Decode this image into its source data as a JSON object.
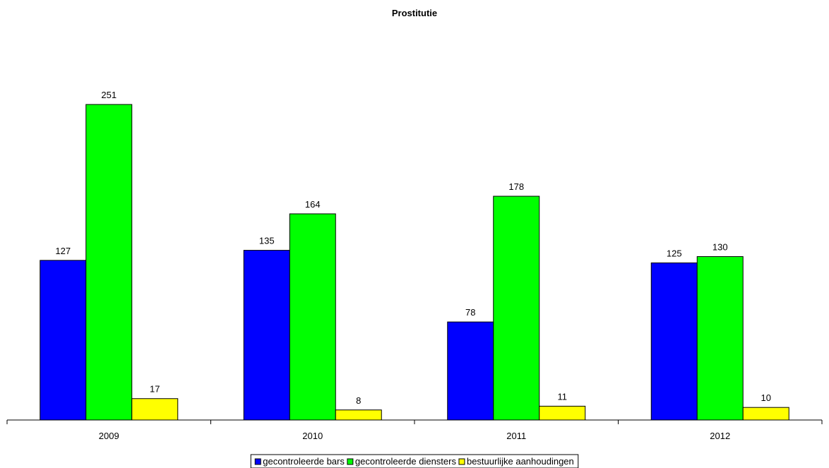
{
  "chart_data": {
    "type": "bar",
    "title": "Prostitutie",
    "xlabel": "",
    "ylabel": "",
    "categories": [
      "2009",
      "2010",
      "2011",
      "2012"
    ],
    "series": [
      {
        "name": "gecontroleerde bars",
        "values": [
          127,
          135,
          78,
          125
        ],
        "color": "#0000ff"
      },
      {
        "name": "gecontroleerde diensters",
        "values": [
          251,
          164,
          178,
          130
        ],
        "color": "#00ff00"
      },
      {
        "name": "bestuurlijke aanhoudingen",
        "values": [
          17,
          8,
          11,
          10
        ],
        "color": "#ffff00"
      }
    ],
    "ylim": [
      0,
      290
    ],
    "grid": false,
    "data_labels": true,
    "legend_position": "bottom-center"
  }
}
